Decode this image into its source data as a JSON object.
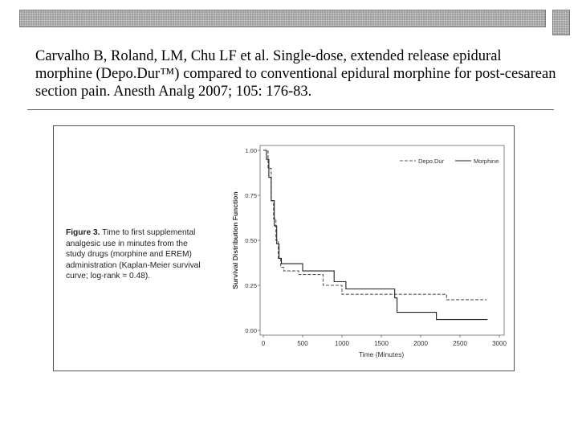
{
  "citation": "Carvalho B, Roland, LM, Chu LF et al. Single-dose, extended release epidural morphine (Depo.Dur™) compared to conventional epidural morphine for post-cesarean section pain. Anesth Analg 2007; 105: 176-83.",
  "caption": {
    "label": "Figure 3.",
    "text": "Time to first supplemental analgesic use in minutes from the study drugs (morphine and EREM) administration (Kaplan-Meier survival curve; log-rank = 0.48)."
  },
  "chart_data": {
    "type": "line",
    "xlabel": "Time (Minutes)",
    "ylabel": "Survival Distribution Function",
    "xlim": [
      0,
      3000
    ],
    "ylim": [
      0,
      1
    ],
    "xticks": [
      0,
      500,
      1000,
      1500,
      2000,
      2500,
      3000
    ],
    "yticks": [
      0,
      0.25,
      0.5,
      0.75,
      1
    ],
    "ytick_labels": [
      "0.00",
      "0.25",
      "0.50",
      "0.75",
      "1.00"
    ],
    "legend_position": "top-right",
    "grid": false,
    "series": [
      {
        "name": "Depo.Dur",
        "style": "dashed",
        "color": "#555555",
        "x": [
          0,
          60,
          100,
          130,
          160,
          190,
          220,
          260,
          450,
          760,
          1000,
          2330,
          2840
        ],
        "y": [
          1.0,
          0.9,
          0.72,
          0.62,
          0.5,
          0.4,
          0.35,
          0.33,
          0.31,
          0.25,
          0.2,
          0.17,
          0.17
        ]
      },
      {
        "name": "Morphine",
        "style": "solid",
        "color": "#222222",
        "x": [
          0,
          40,
          70,
          100,
          140,
          170,
          200,
          230,
          270,
          500,
          900,
          1050,
          1670,
          1700,
          2200,
          2850
        ],
        "y": [
          1.0,
          0.95,
          0.85,
          0.72,
          0.58,
          0.48,
          0.4,
          0.37,
          0.37,
          0.33,
          0.27,
          0.23,
          0.18,
          0.1,
          0.06,
          0.06
        ]
      }
    ]
  }
}
